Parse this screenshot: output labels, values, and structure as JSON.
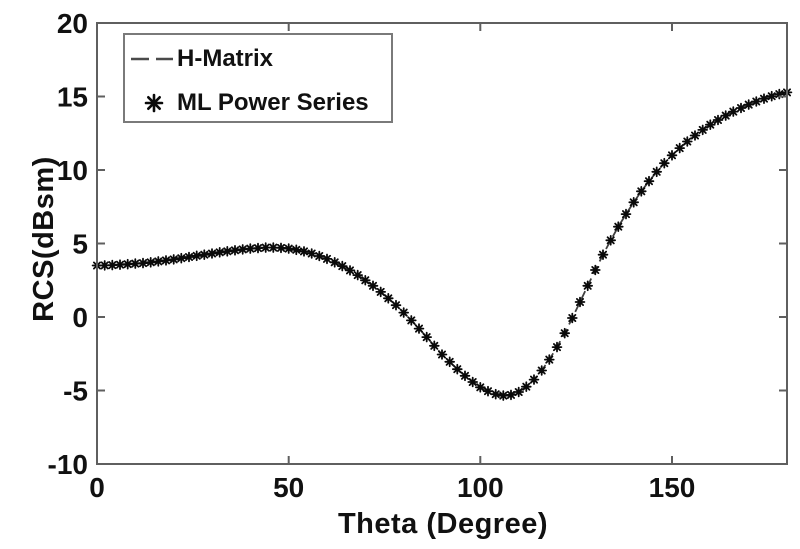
{
  "colors": {
    "background": "#ffffff",
    "text": "#111111",
    "axis_frame": "#5f5f5f",
    "h_matrix_line": "#404040",
    "ml_marker": "#0a0a0a"
  },
  "chart_data": {
    "type": "line",
    "title": "",
    "xlabel": "Theta (Degree)",
    "ylabel": "RCS(dBsm)",
    "xlim": [
      0,
      180
    ],
    "ylim": [
      -10,
      20
    ],
    "xticks": [
      0,
      50,
      100,
      150
    ],
    "yticks": [
      -10,
      -5,
      0,
      5,
      10,
      15,
      20
    ],
    "grid": false,
    "legend_position": "top-left",
    "x": [
      0,
      2,
      4,
      6,
      8,
      10,
      12,
      14,
      16,
      18,
      20,
      22,
      24,
      26,
      28,
      30,
      32,
      34,
      36,
      38,
      40,
      42,
      44,
      46,
      48,
      50,
      52,
      54,
      56,
      58,
      60,
      62,
      64,
      66,
      68,
      70,
      72,
      74,
      76,
      78,
      80,
      82,
      84,
      86,
      88,
      90,
      92,
      94,
      96,
      98,
      100,
      102,
      104,
      106,
      108,
      110,
      112,
      114,
      116,
      118,
      120,
      122,
      124,
      126,
      128,
      130,
      132,
      134,
      136,
      138,
      140,
      142,
      144,
      146,
      148,
      150,
      152,
      154,
      156,
      158,
      160,
      162,
      164,
      166,
      168,
      170,
      172,
      174,
      176,
      178,
      180
    ],
    "series": [
      {
        "name": "H-Matrix",
        "style": "dashed-line",
        "color": "#404040",
        "values": [
          3.5,
          3.51,
          3.53,
          3.56,
          3.59,
          3.63,
          3.67,
          3.72,
          3.78,
          3.85,
          3.92,
          4.0,
          4.08,
          4.16,
          4.24,
          4.32,
          4.4,
          4.47,
          4.54,
          4.6,
          4.65,
          4.69,
          4.72,
          4.72,
          4.7,
          4.65,
          4.57,
          4.46,
          4.32,
          4.15,
          3.95,
          3.72,
          3.46,
          3.17,
          2.85,
          2.5,
          2.12,
          1.71,
          1.27,
          0.8,
          0.3,
          -0.23,
          -0.79,
          -1.37,
          -1.96,
          -2.55,
          -3.05,
          -3.55,
          -4.0,
          -4.42,
          -4.78,
          -5.05,
          -5.25,
          -5.35,
          -5.3,
          -5.1,
          -4.74,
          -4.26,
          -3.64,
          -2.9,
          -2.05,
          -1.1,
          -0.07,
          1.02,
          2.12,
          3.2,
          4.24,
          5.22,
          6.14,
          7.0,
          7.8,
          8.55,
          9.24,
          9.88,
          10.46,
          11.0,
          11.49,
          11.94,
          12.35,
          12.73,
          13.08,
          13.4,
          13.7,
          13.97,
          14.22,
          14.45,
          14.66,
          14.85,
          15.02,
          15.16,
          15.28
        ]
      },
      {
        "name": "ML Power Series",
        "style": "asterisk-markers",
        "color": "#0a0a0a",
        "values": [
          3.5,
          3.51,
          3.53,
          3.56,
          3.59,
          3.63,
          3.67,
          3.72,
          3.78,
          3.85,
          3.92,
          4.0,
          4.08,
          4.16,
          4.24,
          4.32,
          4.4,
          4.47,
          4.54,
          4.6,
          4.65,
          4.69,
          4.72,
          4.72,
          4.7,
          4.65,
          4.57,
          4.46,
          4.32,
          4.15,
          3.95,
          3.72,
          3.46,
          3.17,
          2.85,
          2.5,
          2.12,
          1.71,
          1.27,
          0.8,
          0.3,
          -0.23,
          -0.79,
          -1.37,
          -1.96,
          -2.55,
          -3.05,
          -3.55,
          -4.0,
          -4.42,
          -4.78,
          -5.05,
          -5.25,
          -5.35,
          -5.3,
          -5.1,
          -4.74,
          -4.26,
          -3.64,
          -2.9,
          -2.05,
          -1.1,
          -0.07,
          1.02,
          2.12,
          3.2,
          4.24,
          5.22,
          6.14,
          7.0,
          7.8,
          8.55,
          9.24,
          9.88,
          10.46,
          11.0,
          11.49,
          11.94,
          12.35,
          12.73,
          13.08,
          13.4,
          13.7,
          13.97,
          14.22,
          14.45,
          14.66,
          14.85,
          15.02,
          15.16,
          15.28
        ]
      }
    ]
  }
}
